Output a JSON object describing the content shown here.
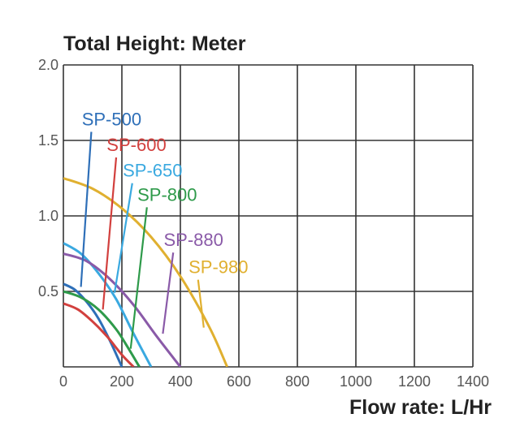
{
  "chart_data": {
    "type": "line",
    "ylabel": "Total Height:  Meter",
    "xlabel": "Flow rate:  L/Hr",
    "xlim": [
      0,
      1400
    ],
    "ylim": [
      0,
      2.0
    ],
    "x_ticks": [
      "0",
      "200",
      "400",
      "600",
      "800",
      "1000",
      "1200",
      "1400"
    ],
    "y_ticks": [
      "0.5",
      "1.0",
      "1.5",
      "2.0"
    ],
    "grid": true,
    "series": [
      {
        "name": "SP-500",
        "color": "#2e6fb8",
        "x": [
          0,
          40,
          80,
          120,
          160,
          200
        ],
        "y": [
          0.55,
          0.51,
          0.43,
          0.32,
          0.17,
          0.0
        ]
      },
      {
        "name": "SP-600",
        "color": "#d2403e",
        "x": [
          0,
          50,
          100,
          150,
          200,
          240
        ],
        "y": [
          0.42,
          0.38,
          0.3,
          0.2,
          0.08,
          0.0
        ]
      },
      {
        "name": "SP-650",
        "color": "#3aa9e0",
        "x": [
          0,
          60,
          120,
          180,
          240,
          300
        ],
        "y": [
          0.82,
          0.75,
          0.62,
          0.45,
          0.22,
          0.0
        ]
      },
      {
        "name": "SP-800",
        "color": "#2e9a4a",
        "x": [
          0,
          60,
          120,
          180,
          220,
          260
        ],
        "y": [
          0.5,
          0.46,
          0.38,
          0.25,
          0.13,
          0.0
        ]
      },
      {
        "name": "SP-880",
        "color": "#8a5aa8",
        "x": [
          0,
          80,
          160,
          240,
          320,
          400
        ],
        "y": [
          0.75,
          0.7,
          0.58,
          0.41,
          0.2,
          0.0
        ]
      },
      {
        "name": "SP-980",
        "color": "#e0b030",
        "x": [
          0,
          100,
          200,
          300,
          400,
          500,
          560
        ],
        "y": [
          1.25,
          1.18,
          1.05,
          0.86,
          0.6,
          0.26,
          0.0
        ]
      }
    ],
    "label_callouts": [
      {
        "series": "SP-500",
        "label_x": 165,
        "label_y": 1.6,
        "curve_x": 60,
        "curve_y": 0.53
      },
      {
        "series": "SP-600",
        "label_x": 250,
        "label_y": 1.43,
        "curve_x": 135,
        "curve_y": 0.38
      },
      {
        "series": "SP-650",
        "label_x": 305,
        "label_y": 1.26,
        "curve_x": 175,
        "curve_y": 0.49
      },
      {
        "series": "SP-800",
        "label_x": 355,
        "label_y": 1.1,
        "curve_x": 230,
        "curve_y": 0.12
      },
      {
        "series": "SP-880",
        "label_x": 445,
        "label_y": 0.8,
        "curve_x": 340,
        "curve_y": 0.22
      },
      {
        "series": "SP-980",
        "label_x": 530,
        "label_y": 0.62,
        "curve_x": 480,
        "curve_y": 0.26
      }
    ]
  }
}
